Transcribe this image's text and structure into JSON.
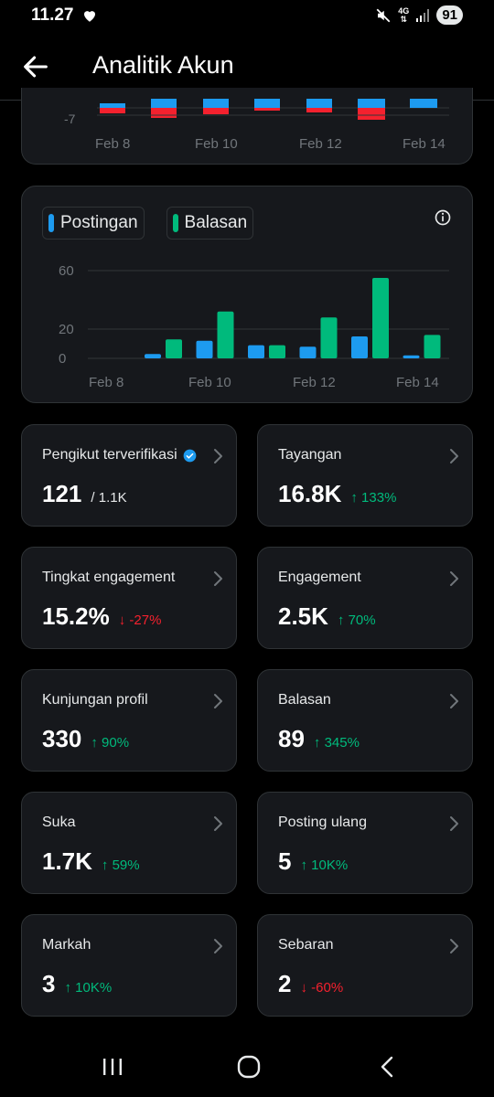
{
  "status": {
    "time": "11.27",
    "network": "4G",
    "battery": "91"
  },
  "header": {
    "title": "Analitik Akun"
  },
  "top_chart": {
    "tick_labels": [
      "-7"
    ],
    "x_labels": [
      "Feb 8",
      "Feb 10",
      "Feb 12",
      "Feb 14"
    ]
  },
  "chart_data": {
    "type": "bar",
    "categories": [
      "Feb 8",
      "Feb 9",
      "Feb 10",
      "Feb 11",
      "Feb 12",
      "Feb 13",
      "Feb 14"
    ],
    "series": [
      {
        "name": "Postingan",
        "values": [
          3,
          12,
          9,
          8,
          15,
          2,
          null
        ],
        "color": "#1d9bf0"
      },
      {
        "name": "Balasan",
        "values": [
          13,
          32,
          9,
          28,
          55,
          16,
          null
        ],
        "color": "#00ba7c"
      }
    ],
    "y_ticks": [
      "60",
      "20",
      "0"
    ],
    "x_labels": [
      "Feb 8",
      "Feb 10",
      "Feb 12",
      "Feb 14"
    ],
    "ylim": [
      0,
      60
    ],
    "legend": [
      "Postingan",
      "Balasan"
    ],
    "legend_position": "top-left"
  },
  "tiles": [
    {
      "label": "Pengikut terverifikasi",
      "value": "121",
      "sub": "/ 1.1K",
      "change": "",
      "direction": "none",
      "verified": true
    },
    {
      "label": "Tayangan",
      "value": "16.8K",
      "sub": "",
      "change": "↑ 133%",
      "direction": "up"
    },
    {
      "label": "Tingkat engagement",
      "value": "15.2%",
      "sub": "",
      "change": "↓ -27%",
      "direction": "down"
    },
    {
      "label": "Engagement",
      "value": "2.5K",
      "sub": "",
      "change": "↑ 70%",
      "direction": "up"
    },
    {
      "label": "Kunjungan profil",
      "value": "330",
      "sub": "",
      "change": "↑ 90%",
      "direction": "up"
    },
    {
      "label": "Balasan",
      "value": "89",
      "sub": "",
      "change": "↑ 345%",
      "direction": "up"
    },
    {
      "label": "Suka",
      "value": "1.7K",
      "sub": "",
      "change": "↑ 59%",
      "direction": "up"
    },
    {
      "label": "Posting ulang",
      "value": "5",
      "sub": "",
      "change": "↑ 10K%",
      "direction": "up"
    },
    {
      "label": "Markah",
      "value": "3",
      "sub": "",
      "change": "↑ 10K%",
      "direction": "up"
    },
    {
      "label": "Sebaran",
      "value": "2",
      "sub": "",
      "change": "↓ -60%",
      "direction": "down"
    }
  ],
  "icons": {
    "back": "arrow-left-icon",
    "info": "info-icon",
    "chevron": "chevron-right-icon",
    "verified": "verified-badge-icon",
    "nav_recent": "recent-apps-icon",
    "nav_home": "home-icon",
    "nav_back": "back-icon"
  },
  "colors": {
    "postingan": "#1d9bf0",
    "balasan": "#00ba7c",
    "negative": "#f4212e",
    "up": "#00ba7c"
  }
}
